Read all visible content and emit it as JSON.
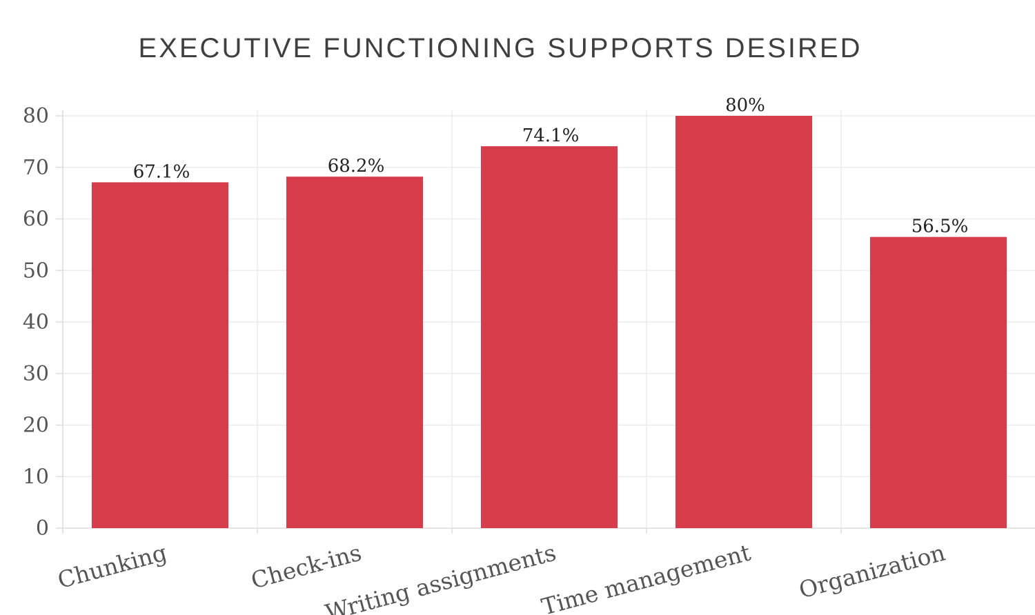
{
  "chart_data": {
    "type": "bar",
    "title": "EXECUTIVE FUNCTIONING SUPPORTS DESIRED",
    "categories": [
      "Chunking",
      "Check-ins",
      "Writing assignments",
      "Time management",
      "Organization"
    ],
    "values": [
      67.1,
      68.2,
      74.1,
      80,
      56.5
    ],
    "data_labels": [
      "67.1%",
      "68.2%",
      "74.1%",
      "80%",
      "56.5%"
    ],
    "ylim": [
      0,
      80
    ],
    "yticks": [
      0,
      10,
      20,
      30,
      40,
      50,
      60,
      70,
      80
    ],
    "xlabel": "",
    "ylabel": "",
    "grid": true,
    "bar_color": "#d73c4a"
  }
}
